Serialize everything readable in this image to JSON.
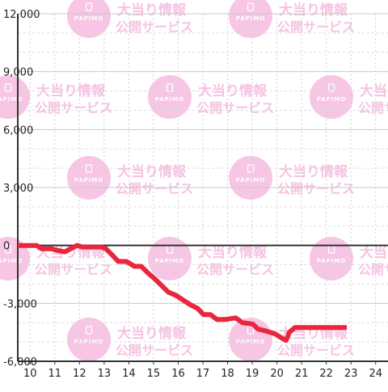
{
  "watermark": {
    "title": "大当り情報",
    "subtitle": "公開サービス",
    "logo": "PAPIMO",
    "color": "#f7c6e4"
  },
  "chart_data": {
    "type": "line",
    "title": "",
    "xlabel": "",
    "ylabel": "",
    "xlim": [
      9.5,
      24.5
    ],
    "ylim": [
      -6000,
      12000
    ],
    "x_ticks": [
      10,
      11,
      12,
      13,
      14,
      15,
      16,
      17,
      18,
      19,
      20,
      21,
      22,
      23,
      24
    ],
    "y_ticks": [
      12000,
      9000,
      6000,
      3000,
      0,
      -3000,
      -6000
    ],
    "x_tick_labels": [
      "10",
      "11",
      "12",
      "13",
      "14",
      "15",
      "16",
      "17",
      "18",
      "19",
      "20",
      "21",
      "22",
      "23",
      "24"
    ],
    "y_tick_labels": [
      "12,000",
      "9,000",
      "6,000",
      "3,000",
      "0",
      "-3,000",
      "-6,000"
    ],
    "grid": true,
    "line_color": "#e8263d",
    "series": [
      {
        "name": "",
        "x": [
          9.5,
          10.27,
          10.47,
          10.87,
          11.07,
          11.4,
          11.53,
          11.9,
          12.13,
          12.53,
          12.9,
          13.07,
          13.33,
          13.57,
          13.9,
          14.23,
          14.5,
          14.77,
          15.07,
          15.33,
          15.6,
          15.9,
          16.2,
          16.5,
          16.77,
          17.03,
          17.3,
          17.57,
          17.93,
          18.33,
          18.6,
          19.03,
          19.23,
          19.53,
          19.93,
          20.13,
          20.37,
          20.5,
          20.73,
          21.07,
          21.43,
          21.83,
          22.23,
          22.83
        ],
        "y": [
          0,
          0,
          -170,
          -170,
          -250,
          -330,
          -250,
          0,
          -80,
          -80,
          -80,
          -170,
          -500,
          -830,
          -830,
          -1080,
          -1080,
          -1420,
          -1750,
          -2080,
          -2420,
          -2580,
          -2830,
          -3080,
          -3250,
          -3580,
          -3580,
          -3830,
          -3830,
          -3750,
          -4000,
          -4080,
          -4330,
          -4420,
          -4580,
          -4750,
          -4920,
          -4500,
          -4250,
          -4250,
          -4250,
          -4250,
          -4250,
          -4250
        ]
      }
    ]
  }
}
